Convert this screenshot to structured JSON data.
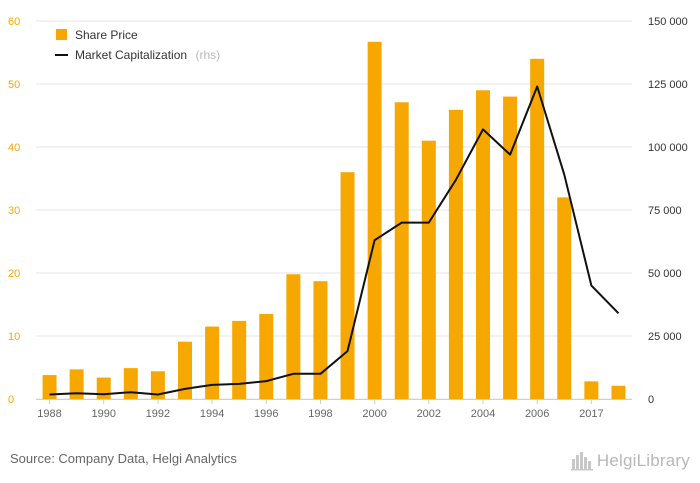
{
  "chart_data": {
    "type": "bar",
    "categories": [
      "1988",
      "1989",
      "1990",
      "1991",
      "1992",
      "1993",
      "1994",
      "1995",
      "1996",
      "1997",
      "1998",
      "1999",
      "2000",
      "2001",
      "2002",
      "2003",
      "2004",
      "2005",
      "2006",
      "2007",
      "2017",
      "2018"
    ],
    "x_tick_labels": [
      "1988",
      "1990",
      "1992",
      "1994",
      "1996",
      "1998",
      "2000",
      "2002",
      "2004",
      "2006",
      "2017"
    ],
    "series": [
      {
        "name": "Share Price",
        "type": "bar",
        "axis": "left",
        "color": "#f7a800",
        "values": [
          3.8,
          4.7,
          3.4,
          4.9,
          4.4,
          9.1,
          11.5,
          12.4,
          13.5,
          19.8,
          18.7,
          36.0,
          56.7,
          47.1,
          41.0,
          45.9,
          49.0,
          48.0,
          54.0,
          32.0,
          2.8,
          2.1
        ]
      },
      {
        "name": "Market Capitalization",
        "name_suffix": "(rhs)",
        "type": "line",
        "axis": "right",
        "color": "#111111",
        "values": [
          1800,
          2300,
          1900,
          2700,
          1800,
          4000,
          5600,
          6000,
          7100,
          10000,
          10000,
          19000,
          63000,
          70000,
          70000,
          87000,
          107000,
          97000,
          124000,
          89000,
          45000,
          34000
        ]
      }
    ],
    "y_left": {
      "ylim": [
        0,
        60
      ],
      "ticks": [
        "0",
        "10",
        "20",
        "30",
        "40",
        "50",
        "60"
      ],
      "color": "#f7a800"
    },
    "y_right": {
      "ylim": [
        0,
        150000
      ],
      "ticks": [
        "0",
        "25 000",
        "50 000",
        "75 000",
        "100 000",
        "125 000",
        "150 000"
      ]
    },
    "grid": true,
    "legend_position": "top-left"
  },
  "legend": {
    "share_price": "Share Price",
    "market_cap": "Market Capitalization",
    "market_cap_suffix": "(rhs)"
  },
  "footer": {
    "source": "Source: Company Data, Helgi Analytics",
    "logo_text": "HelgiLibrary",
    "logo_icon": "city-skyline-icon"
  }
}
